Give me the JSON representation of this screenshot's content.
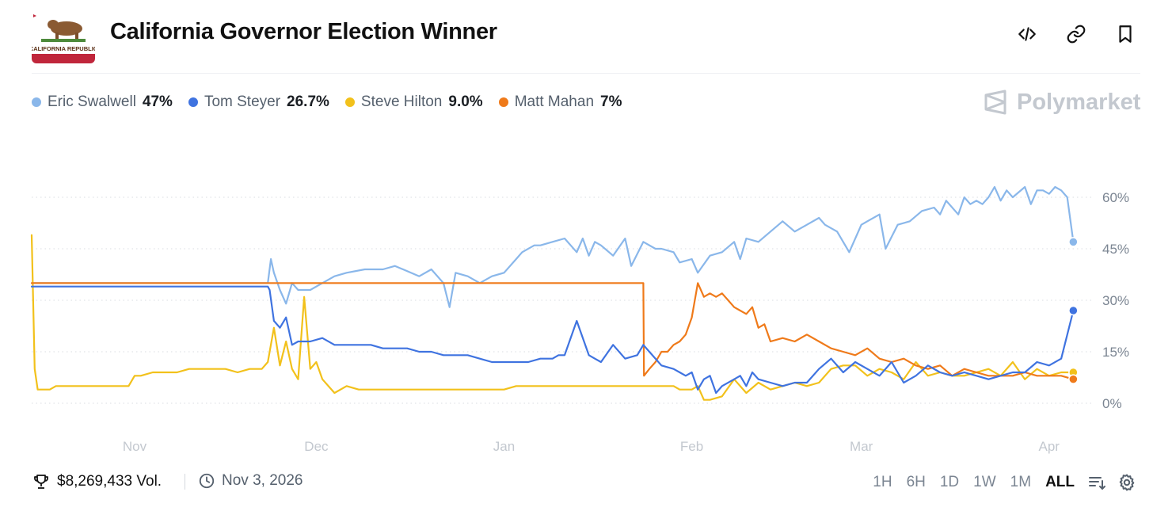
{
  "header": {
    "title": "California Governor Election Winner",
    "flag_text": "CALIFORNIA REPUBLIC",
    "icons": [
      "embed-icon",
      "link-icon",
      "bookmark-icon"
    ]
  },
  "brand": {
    "name": "Polymarket"
  },
  "legend": [
    {
      "name": "Eric Swalwell",
      "value": "47%",
      "color": "#8ab7ea"
    },
    {
      "name": "Tom Steyer",
      "value": "26.7%",
      "color": "#3f73e0"
    },
    {
      "name": "Steve Hilton",
      "value": "9.0%",
      "color": "#f2c11b"
    },
    {
      "name": "Matt Mahan",
      "value": "7%",
      "color": "#ef7a1a"
    }
  ],
  "footer": {
    "volume": "$8,269,433 Vol.",
    "end_date": "Nov 3, 2026",
    "ranges": [
      "1H",
      "6H",
      "1D",
      "1W",
      "1M",
      "ALL"
    ],
    "active_range": "ALL"
  },
  "chart_data": {
    "type": "line",
    "title": "California Governor Election Winner",
    "xlabel": "",
    "ylabel": "",
    "ylim": [
      0,
      60
    ],
    "y_ticks": [
      0,
      15,
      30,
      45,
      60
    ],
    "y_tick_labels": [
      "0%",
      "15%",
      "30%",
      "45%",
      "60%"
    ],
    "x_unit": "days since Oct 15, 2025",
    "xlim": [
      0,
      173
    ],
    "x_ticks": [
      {
        "label": "Nov",
        "x": 17
      },
      {
        "label": "Dec",
        "x": 47
      },
      {
        "label": "Jan",
        "x": 78
      },
      {
        "label": "Feb",
        "x": 109
      },
      {
        "label": "Mar",
        "x": 137
      },
      {
        "label": "Apr",
        "x": 168
      }
    ],
    "series": [
      {
        "name": "Eric Swalwell",
        "color": "#8ab7ea",
        "x": [
          0,
          39,
          39.5,
          40,
          41,
          42,
          43,
          44,
          46,
          48,
          50,
          52,
          55,
          58,
          60,
          64,
          66,
          68,
          69,
          70,
          72,
          74,
          76,
          78,
          80,
          81,
          83,
          84,
          86,
          88,
          90,
          91,
          92,
          93,
          94,
          96,
          98,
          99,
          101,
          103,
          104,
          106,
          107,
          109,
          110,
          112,
          114,
          116,
          117,
          118,
          120,
          122,
          124,
          126,
          128,
          130,
          131,
          133,
          135,
          137,
          138,
          140,
          141,
          143,
          145,
          147,
          149,
          150,
          151,
          153,
          154,
          155,
          156,
          157,
          158,
          159,
          160,
          161,
          162,
          164,
          165,
          166,
          167,
          168,
          169,
          170,
          171,
          172
        ],
        "y": [
          35,
          35,
          42,
          38,
          33,
          29,
          35,
          33,
          33,
          35,
          37,
          38,
          39,
          39,
          40,
          37,
          39,
          35,
          28,
          38,
          37,
          35,
          37,
          38,
          42,
          44,
          46,
          46,
          47,
          48,
          44,
          48,
          43,
          47,
          46,
          43,
          48,
          40,
          47,
          45,
          45,
          44,
          41,
          42,
          38,
          43,
          44,
          47,
          42,
          48,
          47,
          50,
          53,
          50,
          52,
          54,
          52,
          50,
          44,
          52,
          53,
          55,
          45,
          52,
          53,
          56,
          57,
          55,
          59,
          55,
          60,
          58,
          59,
          58,
          60,
          63,
          59,
          62,
          60,
          63,
          58,
          62,
          62,
          61,
          63,
          62,
          60,
          47
        ]
      },
      {
        "name": "Tom Steyer",
        "color": "#3f73e0",
        "x": [
          0,
          39,
          39.3,
          40,
          41,
          42,
          43,
          44,
          46,
          48,
          50,
          52,
          54,
          56,
          58,
          60,
          62,
          64,
          66,
          68,
          70,
          72,
          74,
          76,
          78,
          80,
          82,
          84,
          86,
          87,
          88,
          90,
          92,
          93,
          94,
          96,
          98,
          100,
          101,
          102,
          104,
          106,
          107,
          108,
          109,
          110,
          111,
          112,
          113,
          114,
          116,
          117,
          118,
          119,
          120,
          122,
          124,
          126,
          128,
          130,
          132,
          134,
          136,
          138,
          140,
          142,
          144,
          146,
          148,
          150,
          152,
          154,
          156,
          158,
          160,
          162,
          164,
          166,
          168,
          170,
          172
        ],
        "y": [
          34,
          34,
          33,
          24,
          22,
          25,
          17,
          18,
          18,
          19,
          17,
          17,
          17,
          17,
          16,
          16,
          16,
          15,
          15,
          14,
          14,
          14,
          13,
          12,
          12,
          12,
          12,
          13,
          13,
          14,
          14,
          24,
          14,
          13,
          12,
          17,
          13,
          14,
          17,
          15,
          11,
          10,
          9,
          8,
          9,
          4,
          7,
          8,
          3,
          5,
          7,
          8,
          5,
          9,
          7,
          6,
          5,
          6,
          6,
          10,
          13,
          9,
          12,
          10,
          8,
          12,
          6,
          8,
          11,
          9,
          8,
          9,
          8,
          7,
          8,
          9,
          9,
          12,
          11,
          13,
          27
        ]
      },
      {
        "name": "Steve Hilton",
        "color": "#f2c11b",
        "x": [
          0,
          0.5,
          1,
          2,
          3,
          4,
          6,
          8,
          10,
          12,
          14,
          16,
          17,
          18,
          20,
          22,
          24,
          26,
          28,
          30,
          32,
          34,
          36,
          38,
          39,
          40,
          41,
          42,
          43,
          44,
          45,
          46,
          47,
          48,
          50,
          52,
          54,
          56,
          58,
          60,
          62,
          64,
          66,
          68,
          70,
          72,
          74,
          76,
          78,
          80,
          82,
          84,
          86,
          88,
          90,
          92,
          94,
          96,
          98,
          100,
          102,
          104,
          106,
          107,
          108,
          109,
          110,
          111,
          112,
          114,
          116,
          118,
          120,
          122,
          124,
          126,
          128,
          130,
          132,
          134,
          136,
          138,
          140,
          142,
          144,
          146,
          148,
          150,
          152,
          154,
          156,
          158,
          160,
          162,
          164,
          166,
          168,
          170,
          172
        ],
        "y": [
          49,
          10,
          4,
          4,
          4,
          5,
          5,
          5,
          5,
          5,
          5,
          5,
          8,
          8,
          9,
          9,
          9,
          10,
          10,
          10,
          10,
          9,
          10,
          10,
          12,
          22,
          11,
          18,
          10,
          7,
          31,
          10,
          12,
          7,
          3,
          5,
          4,
          4,
          4,
          4,
          4,
          4,
          4,
          4,
          4,
          4,
          4,
          4,
          4,
          5,
          5,
          5,
          5,
          5,
          5,
          5,
          5,
          5,
          5,
          5,
          5,
          5,
          5,
          4,
          4,
          4,
          5,
          1,
          1,
          2,
          7,
          3,
          6,
          4,
          5,
          6,
          5,
          6,
          10,
          11,
          11,
          8,
          10,
          9,
          7,
          12,
          8,
          9,
          8,
          8,
          9,
          10,
          8,
          12,
          7,
          10,
          8,
          9,
          9
        ]
      },
      {
        "name": "Matt Mahan",
        "color": "#ef7a1a",
        "x": [
          0,
          90,
          100,
          101,
          101.1,
          102,
          103,
          104,
          105,
          106,
          107,
          108,
          109,
          110,
          111,
          112,
          113,
          114,
          115,
          116,
          117,
          118,
          119,
          120,
          121,
          122,
          124,
          126,
          128,
          130,
          132,
          134,
          136,
          138,
          140,
          142,
          144,
          146,
          148,
          150,
          152,
          154,
          156,
          158,
          160,
          162,
          164,
          166,
          168,
          170,
          172
        ],
        "y": [
          35,
          35,
          35,
          35,
          8,
          10,
          12,
          15,
          15,
          17,
          18,
          20,
          25,
          35,
          31,
          32,
          31,
          32,
          30,
          28,
          27,
          26,
          28,
          22,
          23,
          18,
          19,
          18,
          20,
          18,
          16,
          15,
          14,
          16,
          13,
          12,
          13,
          11,
          10,
          11,
          8,
          10,
          9,
          8,
          8,
          8,
          9,
          8,
          8,
          8,
          7
        ]
      }
    ]
  }
}
